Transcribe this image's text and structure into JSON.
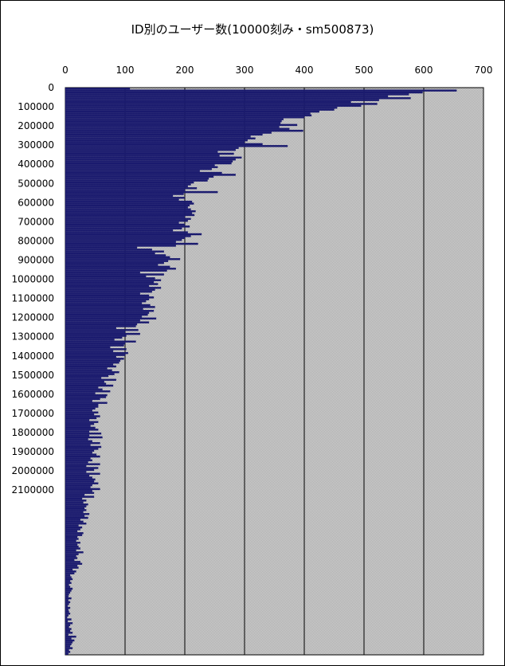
{
  "chart_data": {
    "type": "bar",
    "orientation": "horizontal",
    "title": "ID別のユーザー数(10000刻み・sm500873)",
    "xlabel": "",
    "ylabel": "",
    "xlim": [
      0,
      700
    ],
    "x_ticks": [
      "0",
      "100",
      "200",
      "300",
      "400",
      "500",
      "600",
      "700"
    ],
    "y_ticks": [
      "0",
      "100000",
      "200000",
      "300000",
      "400000",
      "500000",
      "600000",
      "700000",
      "800000",
      "900000",
      "1000000",
      "1100000",
      "1200000",
      "1300000",
      "1400000",
      "1500000",
      "1600000",
      "1700000",
      "1800000",
      "1900000",
      "2000000",
      "2100000"
    ],
    "category_start": 0,
    "category_step": 10000,
    "series": [
      {
        "values": [
          108,
          655,
          598,
          575,
          540,
          578,
          525,
          478,
          522,
          495,
          455,
          450,
          425,
          410,
          412,
          400,
          365,
          362,
          360,
          388,
          358,
          375,
          398,
          345,
          330,
          310,
          318,
          305,
          300,
          330,
          372,
          290,
          285,
          255,
          282,
          258,
          295,
          285,
          280,
          278,
          250,
          255,
          245,
          225,
          262,
          285,
          248,
          240,
          238,
          215,
          210,
          205,
          220,
          200,
          255,
          198,
          180,
          200,
          190,
          212,
          215,
          208,
          205,
          210,
          218,
          212,
          216,
          200,
          210,
          205,
          190,
          200,
          208,
          195,
          180,
          205,
          228,
          210,
          200,
          195,
          185,
          222,
          185,
          120,
          145,
          165,
          150,
          168,
          175,
          192,
          172,
          165,
          155,
          175,
          185,
          170,
          125,
          165,
          135,
          150,
          160,
          148,
          155,
          140,
          160,
          150,
          145,
          125,
          140,
          148,
          140,
          135,
          128,
          142,
          150,
          130,
          148,
          140,
          138,
          128,
          152,
          125,
          140,
          120,
          118,
          85,
          122,
          100,
          125,
          102,
          95,
          82,
          118,
          100,
          98,
          75,
          102,
          80,
          105,
          100,
          85,
          98,
          92,
          90,
          80,
          85,
          70,
          78,
          90,
          82,
          72,
          60,
          85,
          65,
          68,
          80,
          55,
          62,
          75,
          50,
          70,
          68,
          58,
          45,
          70,
          55,
          55,
          50,
          45,
          55,
          48,
          58,
          52,
          40,
          55,
          48,
          42,
          50,
          55,
          40,
          60,
          40,
          62,
          38,
          45,
          58,
          42,
          60,
          55,
          48,
          45,
          52,
          58,
          42,
          45,
          38,
          58,
          35,
          55,
          48,
          35,
          58,
          40,
          45,
          50,
          48,
          55,
          45,
          42,
          58,
          45,
          48,
          32,
          48,
          28,
          35,
          30,
          38,
          35,
          32,
          35,
          30,
          40,
          32,
          38,
          25,
          30,
          35,
          22,
          28,
          25,
          20,
          30,
          28,
          20,
          22,
          18,
          25,
          20,
          22,
          25,
          18,
          30,
          22,
          18,
          20,
          15,
          25,
          28,
          20,
          22,
          12,
          18,
          15,
          8,
          10,
          12,
          8,
          10,
          6,
          8,
          12,
          10,
          8,
          6,
          5,
          10,
          5,
          8,
          6,
          4,
          8,
          5,
          6,
          8,
          5,
          3,
          10,
          4,
          12,
          8,
          6,
          10,
          8,
          12,
          5,
          18,
          10,
          15,
          12,
          10,
          8,
          12,
          6,
          8,
          5
        ]
      }
    ]
  }
}
